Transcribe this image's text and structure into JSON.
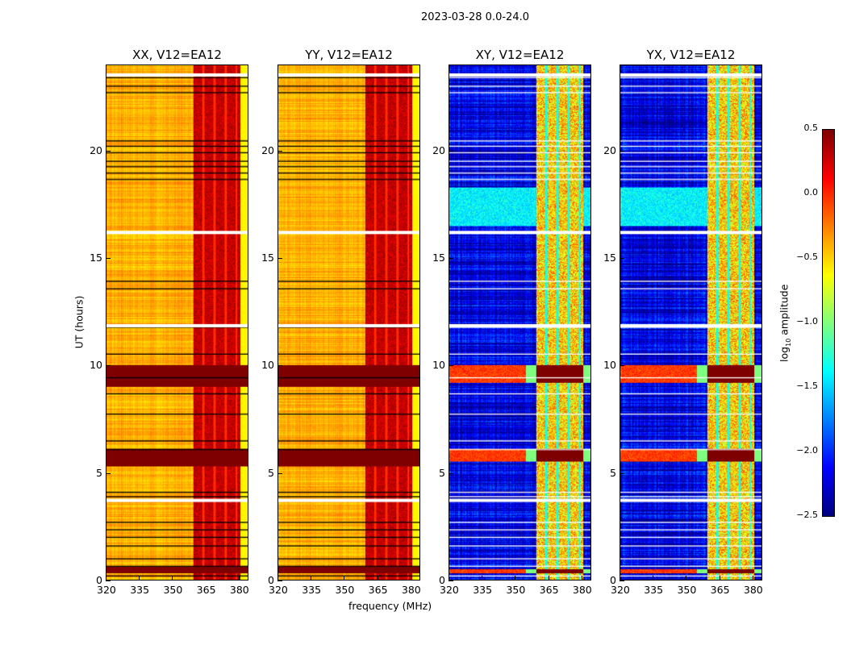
{
  "chart_data": {
    "type": "heatmap",
    "title": "2023-03-28 0.0-24.0",
    "xlabel": "frequency (MHz)",
    "ylabel": "UT (hours)",
    "colorbar_label_prefix": "log",
    "colorbar_label_sub": "10",
    "colorbar_label_suffix": " amplitude",
    "xlim": [
      320,
      384.4
    ],
    "ylim": [
      0,
      24
    ],
    "xticks": [
      "320",
      "335",
      "350",
      "365",
      "380"
    ],
    "xtick_values": [
      320,
      335,
      350,
      365,
      380
    ],
    "yticks": [
      "0",
      "5",
      "10",
      "15",
      "20"
    ],
    "ytick_values": [
      0,
      5,
      10,
      15,
      20
    ],
    "clim": [
      -2.5,
      0.5
    ],
    "colorbar_ticks": [
      "0.5",
      "0.0",
      "−0.5",
      "−1.0",
      "−1.5",
      "−2.0",
      "−2.5"
    ],
    "colorbar_tick_values": [
      0.5,
      0.0,
      -0.5,
      -1.0,
      -1.5,
      -2.0,
      -2.5
    ],
    "colormap": "jet",
    "flagged_hours": [
      23.45,
      23.05,
      22.75,
      20.5,
      20.25,
      19.95,
      19.55,
      19.3,
      19.0,
      18.7,
      13.95,
      13.6,
      11.8,
      10.55,
      9.45,
      8.7,
      7.75,
      6.5,
      6.1,
      4.1,
      3.9,
      2.7,
      2.35,
      2.0,
      1.6,
      1.0,
      0.65,
      0.2
    ],
    "gap_hours": [
      23.55,
      16.2,
      3.7,
      11.85
    ],
    "panels": [
      {
        "name": "XX, V12=EA12",
        "pol": "parallel",
        "background_log_amp": -0.4,
        "band_360_381_log_amp": 0.3,
        "flare_hours": [
          [
            9.0,
            10.0
          ],
          [
            5.3,
            6.1
          ],
          [
            0.3,
            0.6
          ]
        ],
        "flare_log_amp": 0.5
      },
      {
        "name": "YY, V12=EA12",
        "pol": "parallel",
        "background_log_amp": -0.4,
        "band_360_381_log_amp": 0.3,
        "flare_hours": [
          [
            9.0,
            10.0
          ],
          [
            5.3,
            6.1
          ],
          [
            0.3,
            0.6
          ]
        ],
        "flare_log_amp": 0.5
      },
      {
        "name": "XY, V12=EA12",
        "pol": "cross",
        "background_log_amp": -2.2,
        "band_360_381_log_amp": -0.5,
        "flare_hours": [
          [
            9.2,
            10.0
          ],
          [
            5.5,
            6.1
          ],
          [
            0.3,
            0.5
          ]
        ],
        "flare_log_amp": 0.1
      },
      {
        "name": "YX, V12=EA12",
        "pol": "cross",
        "background_log_amp": -2.2,
        "band_360_381_log_amp": -0.5,
        "flare_hours": [
          [
            9.2,
            10.0
          ],
          [
            5.5,
            6.1
          ],
          [
            0.3,
            0.5
          ]
        ],
        "flare_log_amp": 0.1
      }
    ]
  }
}
